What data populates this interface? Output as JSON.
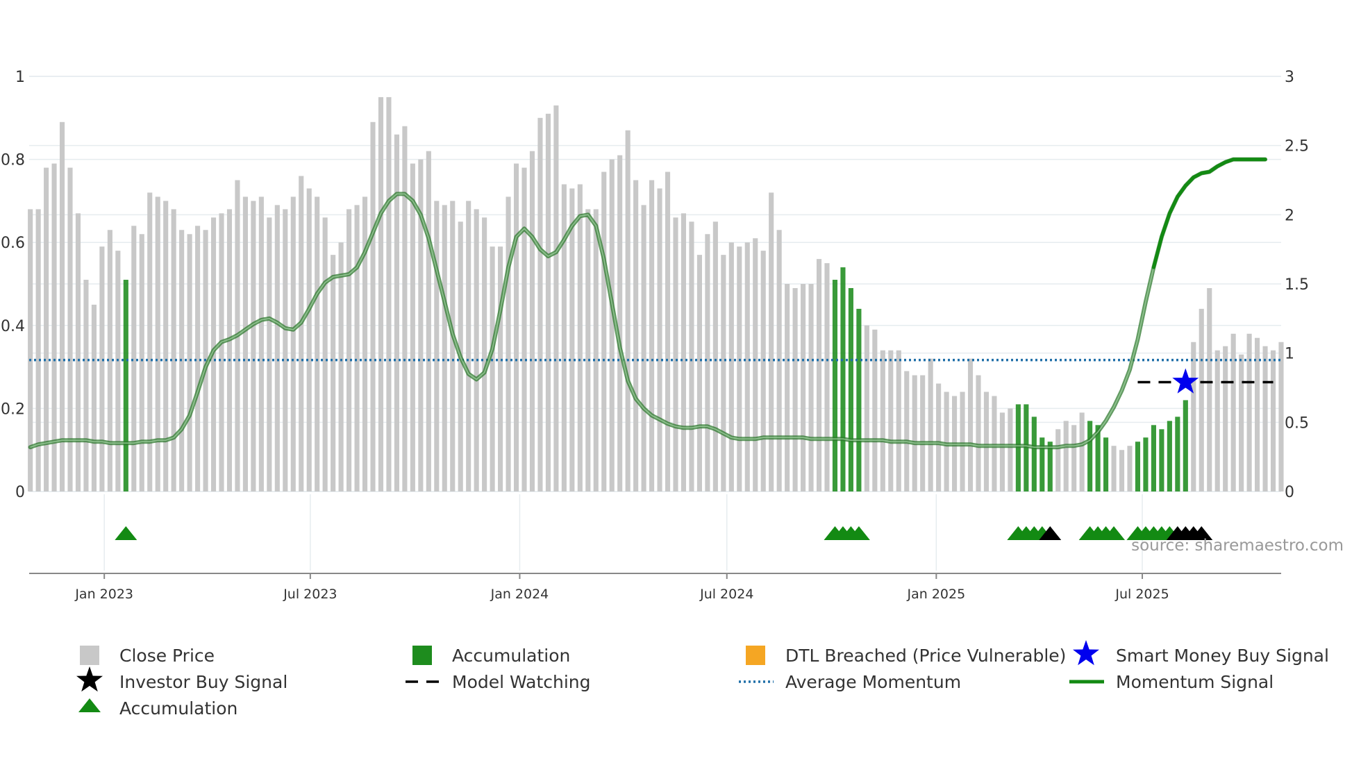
{
  "chart_data": {
    "type": "bar",
    "source": "source: sharemaestro.com",
    "x_ticks": [
      "Jan 2023",
      "Jul 2023",
      "Jan 2024",
      "Jul 2024",
      "Jan 2025",
      "Jul 2025"
    ],
    "x_tick_dates": [
      "2023-01-01",
      "2023-07-01",
      "2024-01-01",
      "2024-07-01",
      "2025-01-01",
      "2025-07-01"
    ],
    "x_range": [
      "2022-10-27",
      "2025-10-31"
    ],
    "left_axis": {
      "ticks": [
        "0",
        "0.2",
        "0.4",
        "0.6",
        "0.8",
        "1"
      ],
      "tick_values": [
        0,
        0.2,
        0.4,
        0.6,
        0.8,
        1
      ],
      "ylim": [
        0,
        1.0
      ]
    },
    "right_axis": {
      "ticks": [
        "0",
        "0.5",
        "1",
        "1.5",
        "2",
        "2.5",
        "3"
      ],
      "tick_values": [
        0,
        0.5,
        1,
        1.5,
        2,
        2.5,
        3
      ],
      "ylim": [
        0,
        3.0
      ]
    },
    "start_date": "2022-10-28",
    "week_days": 7,
    "close_price": [
      0.68,
      0.68,
      0.78,
      0.79,
      0.89,
      0.78,
      0.67,
      0.51,
      0.45,
      0.59,
      0.63,
      0.58,
      0.51,
      0.64,
      0.62,
      0.72,
      0.71,
      0.7,
      0.68,
      0.63,
      0.62,
      0.64,
      0.63,
      0.66,
      0.67,
      0.68,
      0.75,
      0.71,
      0.7,
      0.71,
      0.66,
      0.69,
      0.68,
      0.71,
      0.76,
      0.73,
      0.71,
      0.66,
      0.57,
      0.6,
      0.68,
      0.69,
      0.71,
      0.89,
      0.95,
      0.95,
      0.86,
      0.88,
      0.79,
      0.8,
      0.82,
      0.7,
      0.69,
      0.7,
      0.65,
      0.7,
      0.68,
      0.66,
      0.59,
      0.59,
      0.71,
      0.79,
      0.78,
      0.82,
      0.9,
      0.91,
      0.93,
      0.74,
      0.73,
      0.74,
      0.68,
      0.68,
      0.77,
      0.8,
      0.81,
      0.87,
      0.75,
      0.69,
      0.75,
      0.73,
      0.77,
      0.66,
      0.67,
      0.65,
      0.57,
      0.62,
      0.65,
      0.57,
      0.6,
      0.59,
      0.6,
      0.61,
      0.58,
      0.72,
      0.63,
      0.5,
      0.49,
      0.5,
      0.5,
      0.56,
      0.55,
      0.51,
      0.54,
      0.49,
      0.44,
      0.4,
      0.39,
      0.34,
      0.34,
      0.34,
      0.29,
      0.28,
      0.28,
      0.32,
      0.26,
      0.24,
      0.23,
      0.24,
      0.32,
      0.28,
      0.24,
      0.23,
      0.19,
      0.2,
      0.21,
      0.21,
      0.18,
      0.13,
      0.12,
      0.15,
      0.17,
      0.16,
      0.19,
      0.17,
      0.16,
      0.13,
      0.11,
      0.1,
      0.11,
      0.12,
      0.13,
      0.16,
      0.15,
      0.17,
      0.18,
      0.22,
      0.36,
      0.44,
      0.49,
      0.34,
      0.35,
      0.38,
      0.33,
      0.38,
      0.37,
      0.35,
      0.34,
      0.36
    ],
    "accumulation_bar_indices": [
      12,
      101,
      102,
      103,
      104,
      124,
      125,
      126,
      127,
      128,
      133,
      134,
      135,
      139,
      140,
      141,
      142,
      143,
      144,
      145
    ],
    "accumulation_marker_indices": [
      12,
      101,
      102,
      103,
      104,
      124,
      125,
      126,
      127,
      133,
      134,
      135,
      136,
      139,
      140,
      141,
      142,
      143
    ],
    "investor_buy_marker_indices": [
      128,
      144,
      145,
      146,
      147
    ],
    "smart_money_buy": {
      "index": 145,
      "value": 0.79
    },
    "model_watching": {
      "start_index": 139,
      "end_index": 156,
      "value": 0.79
    },
    "average_momentum": 0.95,
    "momentum_signal": [
      0.32,
      0.34,
      0.35,
      0.36,
      0.37,
      0.37,
      0.37,
      0.37,
      0.36,
      0.36,
      0.35,
      0.35,
      0.35,
      0.35,
      0.36,
      0.36,
      0.37,
      0.37,
      0.39,
      0.45,
      0.55,
      0.72,
      0.9,
      1.02,
      1.08,
      1.1,
      1.13,
      1.17,
      1.21,
      1.24,
      1.25,
      1.22,
      1.18,
      1.17,
      1.22,
      1.32,
      1.43,
      1.51,
      1.55,
      1.56,
      1.57,
      1.62,
      1.73,
      1.87,
      2.01,
      2.1,
      2.15,
      2.15,
      2.1,
      2.0,
      1.83,
      1.6,
      1.37,
      1.14,
      0.97,
      0.85,
      0.81,
      0.86,
      1.03,
      1.31,
      1.62,
      1.84,
      1.9,
      1.84,
      1.75,
      1.7,
      1.73,
      1.82,
      1.92,
      1.99,
      2.0,
      1.92,
      1.68,
      1.36,
      1.04,
      0.8,
      0.67,
      0.6,
      0.55,
      0.52,
      0.49,
      0.47,
      0.46,
      0.46,
      0.47,
      0.47,
      0.45,
      0.42,
      0.39,
      0.38,
      0.38,
      0.38,
      0.39,
      0.39,
      0.39,
      0.39,
      0.39,
      0.39,
      0.38,
      0.38,
      0.38,
      0.38,
      0.38,
      0.37,
      0.37,
      0.37,
      0.37,
      0.37,
      0.36,
      0.36,
      0.36,
      0.35,
      0.35,
      0.35,
      0.35,
      0.34,
      0.34,
      0.34,
      0.34,
      0.33,
      0.33,
      0.33,
      0.33,
      0.33,
      0.33,
      0.33,
      0.32,
      0.32,
      0.32,
      0.32,
      0.33,
      0.33,
      0.34,
      0.37,
      0.43,
      0.51,
      0.61,
      0.73,
      0.88,
      1.1,
      1.37,
      1.62,
      1.84,
      2.01,
      2.13,
      2.21,
      2.27,
      2.3,
      2.31,
      2.35,
      2.38,
      2.4,
      2.4,
      2.4,
      2.4,
      2.4
    ]
  },
  "legend": {
    "close_price": "Close Price",
    "accumulation_bar": "Accumulation",
    "dtl_breached": "DTL Breached (Price Vulnerable)",
    "smart_money_buy": "Smart Money Buy Signal",
    "investor_buy": "Investor Buy Signal",
    "model_watching": "Model Watching",
    "average_momentum": "Average Momentum",
    "momentum_signal": "Momentum Signal",
    "accumulation_marker": "Accumulation"
  },
  "colors": {
    "close_price": "#c8c8c8",
    "accumulation": "#1e8c1e",
    "dtl": "#f5a623",
    "smart_money": "#0000ee",
    "investor": "#000000",
    "avg_momentum": "#1f6fa8",
    "momentum": "#3a8f3a",
    "grid": "#e6ecef",
    "axis": "#888888"
  }
}
